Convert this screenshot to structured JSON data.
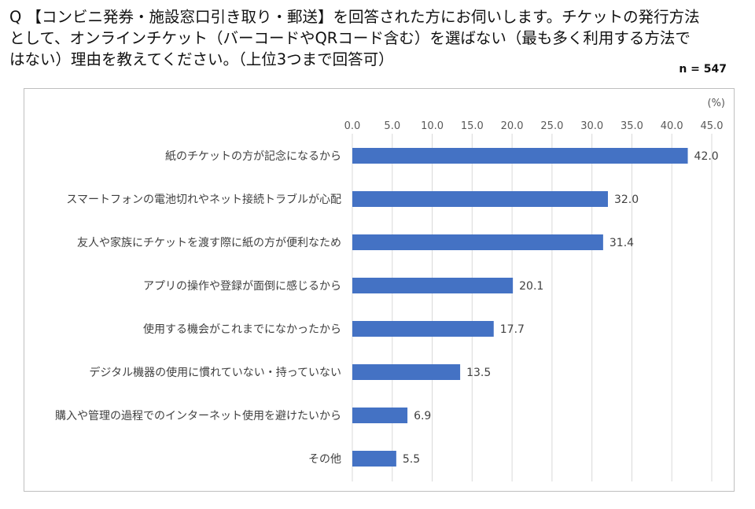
{
  "title": "Q 【コンビニ発券・施設窓口引き取り・郵送】を回答された方にお伺いします。チケットの発行方法として、オンラインチケット（バーコードやQRコード含む）を選ばない（最も多く利用する方法ではない）理由を教えてください。（上位3つまで回答可）",
  "sample_size": "n = 547",
  "chart_data": {
    "type": "bar",
    "orientation": "horizontal",
    "unit": "(%)",
    "xlim": [
      0,
      45
    ],
    "ticks": [
      "0.0",
      "5.0",
      "10.0",
      "15.0",
      "20.0",
      "25.0",
      "30.0",
      "35.0",
      "40.0",
      "45.0"
    ],
    "grid": true,
    "bar_color": "#4472c4",
    "categories": [
      "紙のチケットの方が記念になるから",
      "スマートフォンの電池切れやネット接続トラブルが心配",
      "友人や家族にチケットを渡す際に紙の方が便利なため",
      "アプリの操作や登録が面倒に感じるから",
      "使用する機会がこれまでになかったから",
      "デジタル機器の使用に慣れていない・持っていない",
      "購入や管理の過程でのインターネット使用を避けたいから",
      "その他"
    ],
    "values": [
      42.0,
      32.0,
      31.4,
      20.1,
      17.7,
      13.5,
      6.9,
      5.5
    ],
    "value_labels": [
      "42.0",
      "32.0",
      "31.4",
      "20.1",
      "17.7",
      "13.5",
      "6.9",
      "5.5"
    ]
  }
}
